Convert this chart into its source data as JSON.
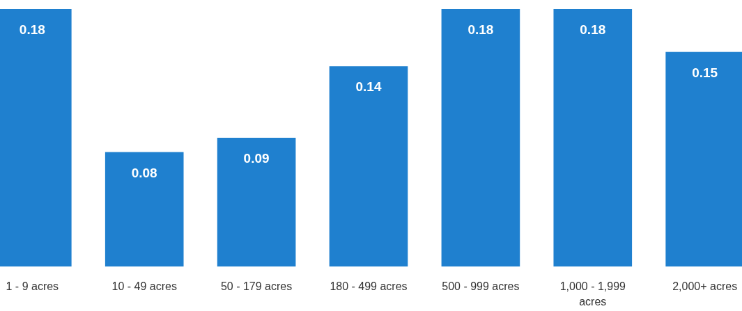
{
  "chart_data": {
    "type": "bar",
    "categories": [
      "1 - 9 acres",
      "10 - 49 acres",
      "50 - 179 acres",
      "180 - 499 acres",
      "500 - 999 acres",
      "1,000 - 1,999 acres",
      "2,000+ acres"
    ],
    "values": [
      0.18,
      0.08,
      0.09,
      0.14,
      0.18,
      0.18,
      0.15
    ],
    "color": "#1f80cf",
    "data_labels": true
  }
}
